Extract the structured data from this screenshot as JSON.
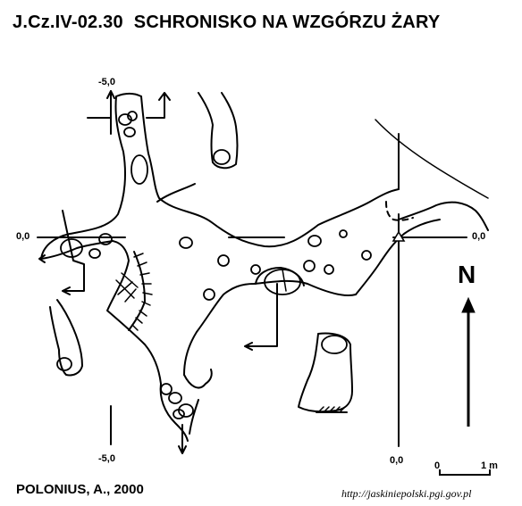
{
  "header": {
    "code": "J.Cz.IV-02.30",
    "name": "SCHRONISKO NA WZGÓRZU ŻARY"
  },
  "grid_labels": {
    "x_left": "-5,0",
    "x_right": "0,0",
    "y_top": "0,0",
    "y_bottom": "-5,0"
  },
  "north_label": "N",
  "scale": {
    "start": "0",
    "end": "1 m"
  },
  "footer": {
    "author": "POLONIUS, A., 2000",
    "source": "http://jaskiniepolski.pgi.gov.pl"
  }
}
